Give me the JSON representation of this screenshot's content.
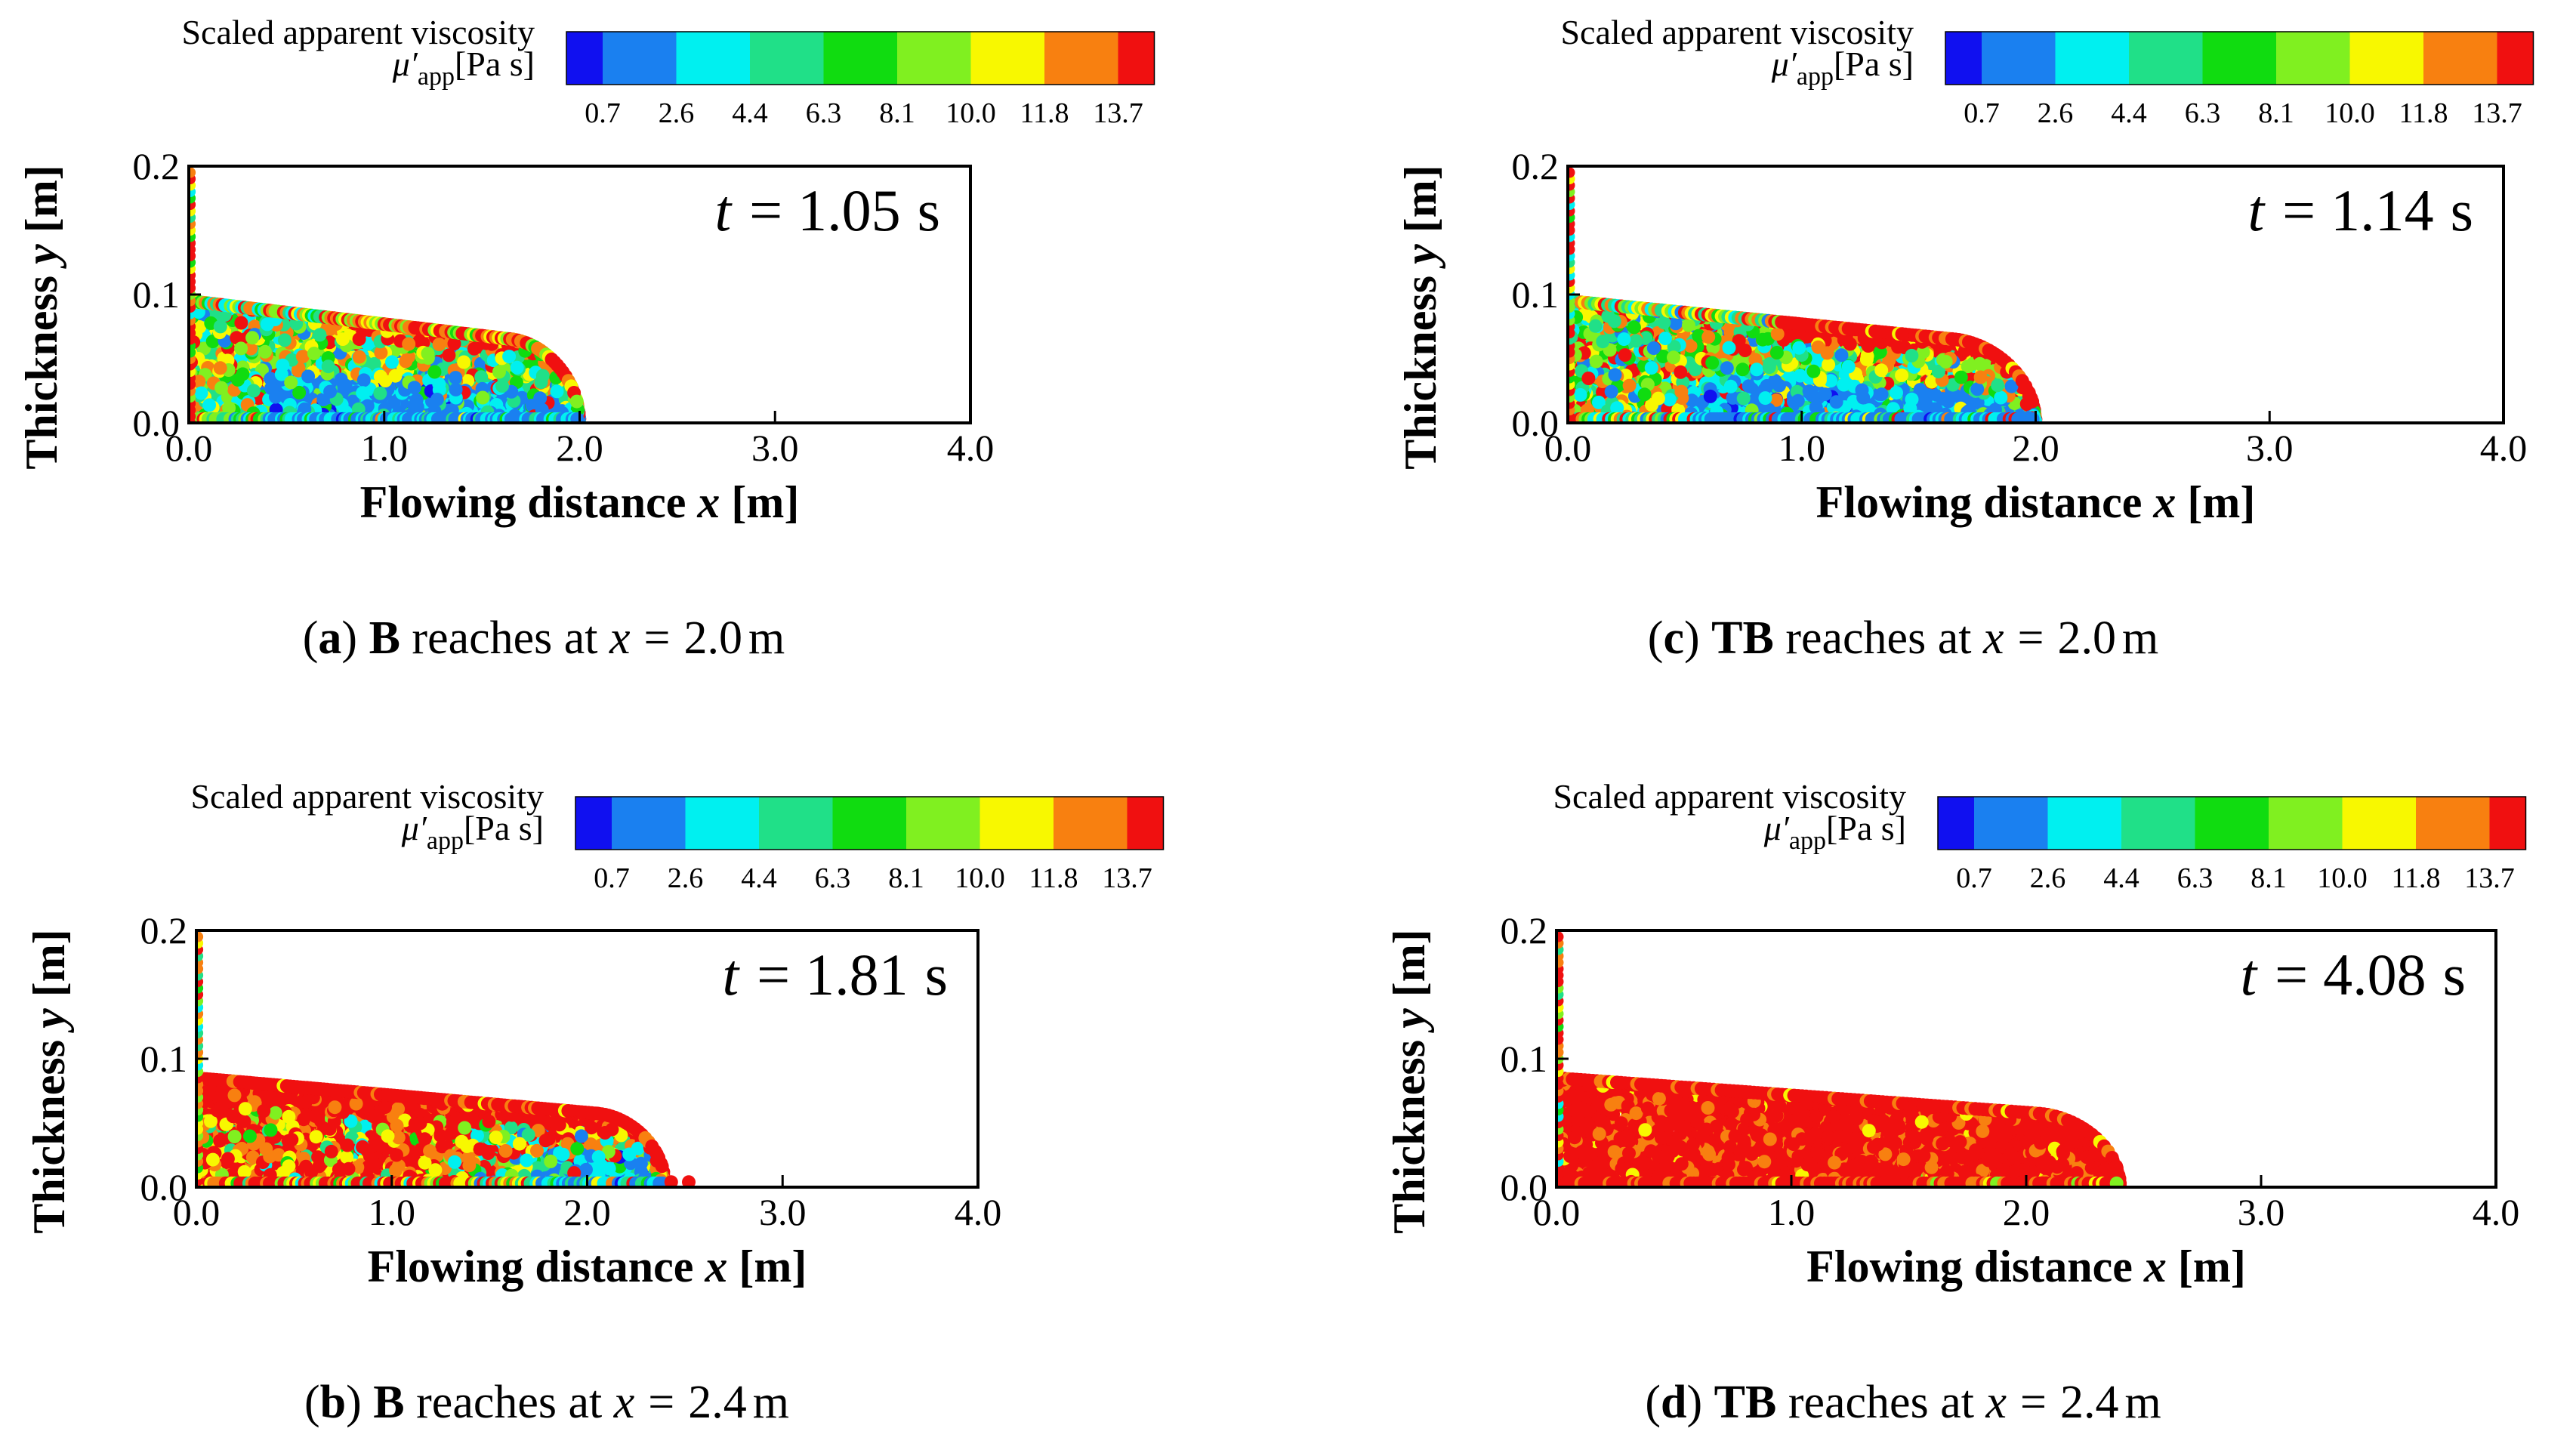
{
  "figure": {
    "legend_title": "Scaled apparent viscosity",
    "legend_symbol": "μ′",
    "legend_symbol_sub": "app",
    "legend_unit": "[Pa s]",
    "xlabel_prefix": "Flowing distance ",
    "xlabel_var": "x",
    "xlabel_unit": " [m]",
    "ylabel_prefix": "Thickness ",
    "ylabel_var": "y",
    "ylabel_unit": " [m]",
    "x_ticks": [
      "0.0",
      "1.0",
      "2.0",
      "3.0",
      "4.0"
    ],
    "y_ticks": [
      "0.0",
      "0.1",
      "0.2"
    ],
    "reach_text": " reaches at ",
    "time_var": "t",
    "time_eq": "=",
    "time_unit": "s",
    "unit_m": "m",
    "eq": "=",
    "colorbar": {
      "ticks": [
        "0.7",
        "2.6",
        "4.4",
        "6.3",
        "8.1",
        "10.0",
        "11.8",
        "13.7"
      ],
      "colors": [
        "#1010f0",
        "#1a80f0",
        "#00f0f0",
        "#20e088",
        "#10dc10",
        "#80f020",
        "#f8f800",
        "#f88010",
        "#f01010"
      ]
    }
  },
  "chart_data": [
    {
      "id": "a",
      "type": "scatter",
      "model": "B",
      "caption_letter": "a",
      "caption_reach": "2.0",
      "time": "1.05",
      "front_x": 2.0,
      "max_height": 0.095,
      "xlim": [
        0,
        4.0
      ],
      "ylim": [
        0,
        0.2
      ],
      "profile": "mixed_b"
    },
    {
      "id": "b",
      "type": "scatter",
      "model": "B",
      "caption_letter": "b",
      "caption_reach": "2.4",
      "time": "1.81",
      "front_x": 2.4,
      "max_height": 0.085,
      "xlim": [
        0,
        4.0
      ],
      "ylim": [
        0,
        0.2
      ],
      "profile": "mostly_red_b"
    },
    {
      "id": "c",
      "type": "scatter",
      "model": "TB",
      "caption_letter": "c",
      "caption_reach": "2.0",
      "time": "1.14",
      "front_x": 2.0,
      "max_height": 0.095,
      "xlim": [
        0,
        4.0
      ],
      "ylim": [
        0,
        0.2
      ],
      "profile": "mixed_tb"
    },
    {
      "id": "d",
      "type": "scatter",
      "model": "TB",
      "caption_letter": "d",
      "caption_reach": "2.4",
      "time": "4.08",
      "front_x": 2.4,
      "max_height": 0.085,
      "xlim": [
        0,
        4.0
      ],
      "ylim": [
        0,
        0.2
      ],
      "profile": "red_tb"
    }
  ]
}
